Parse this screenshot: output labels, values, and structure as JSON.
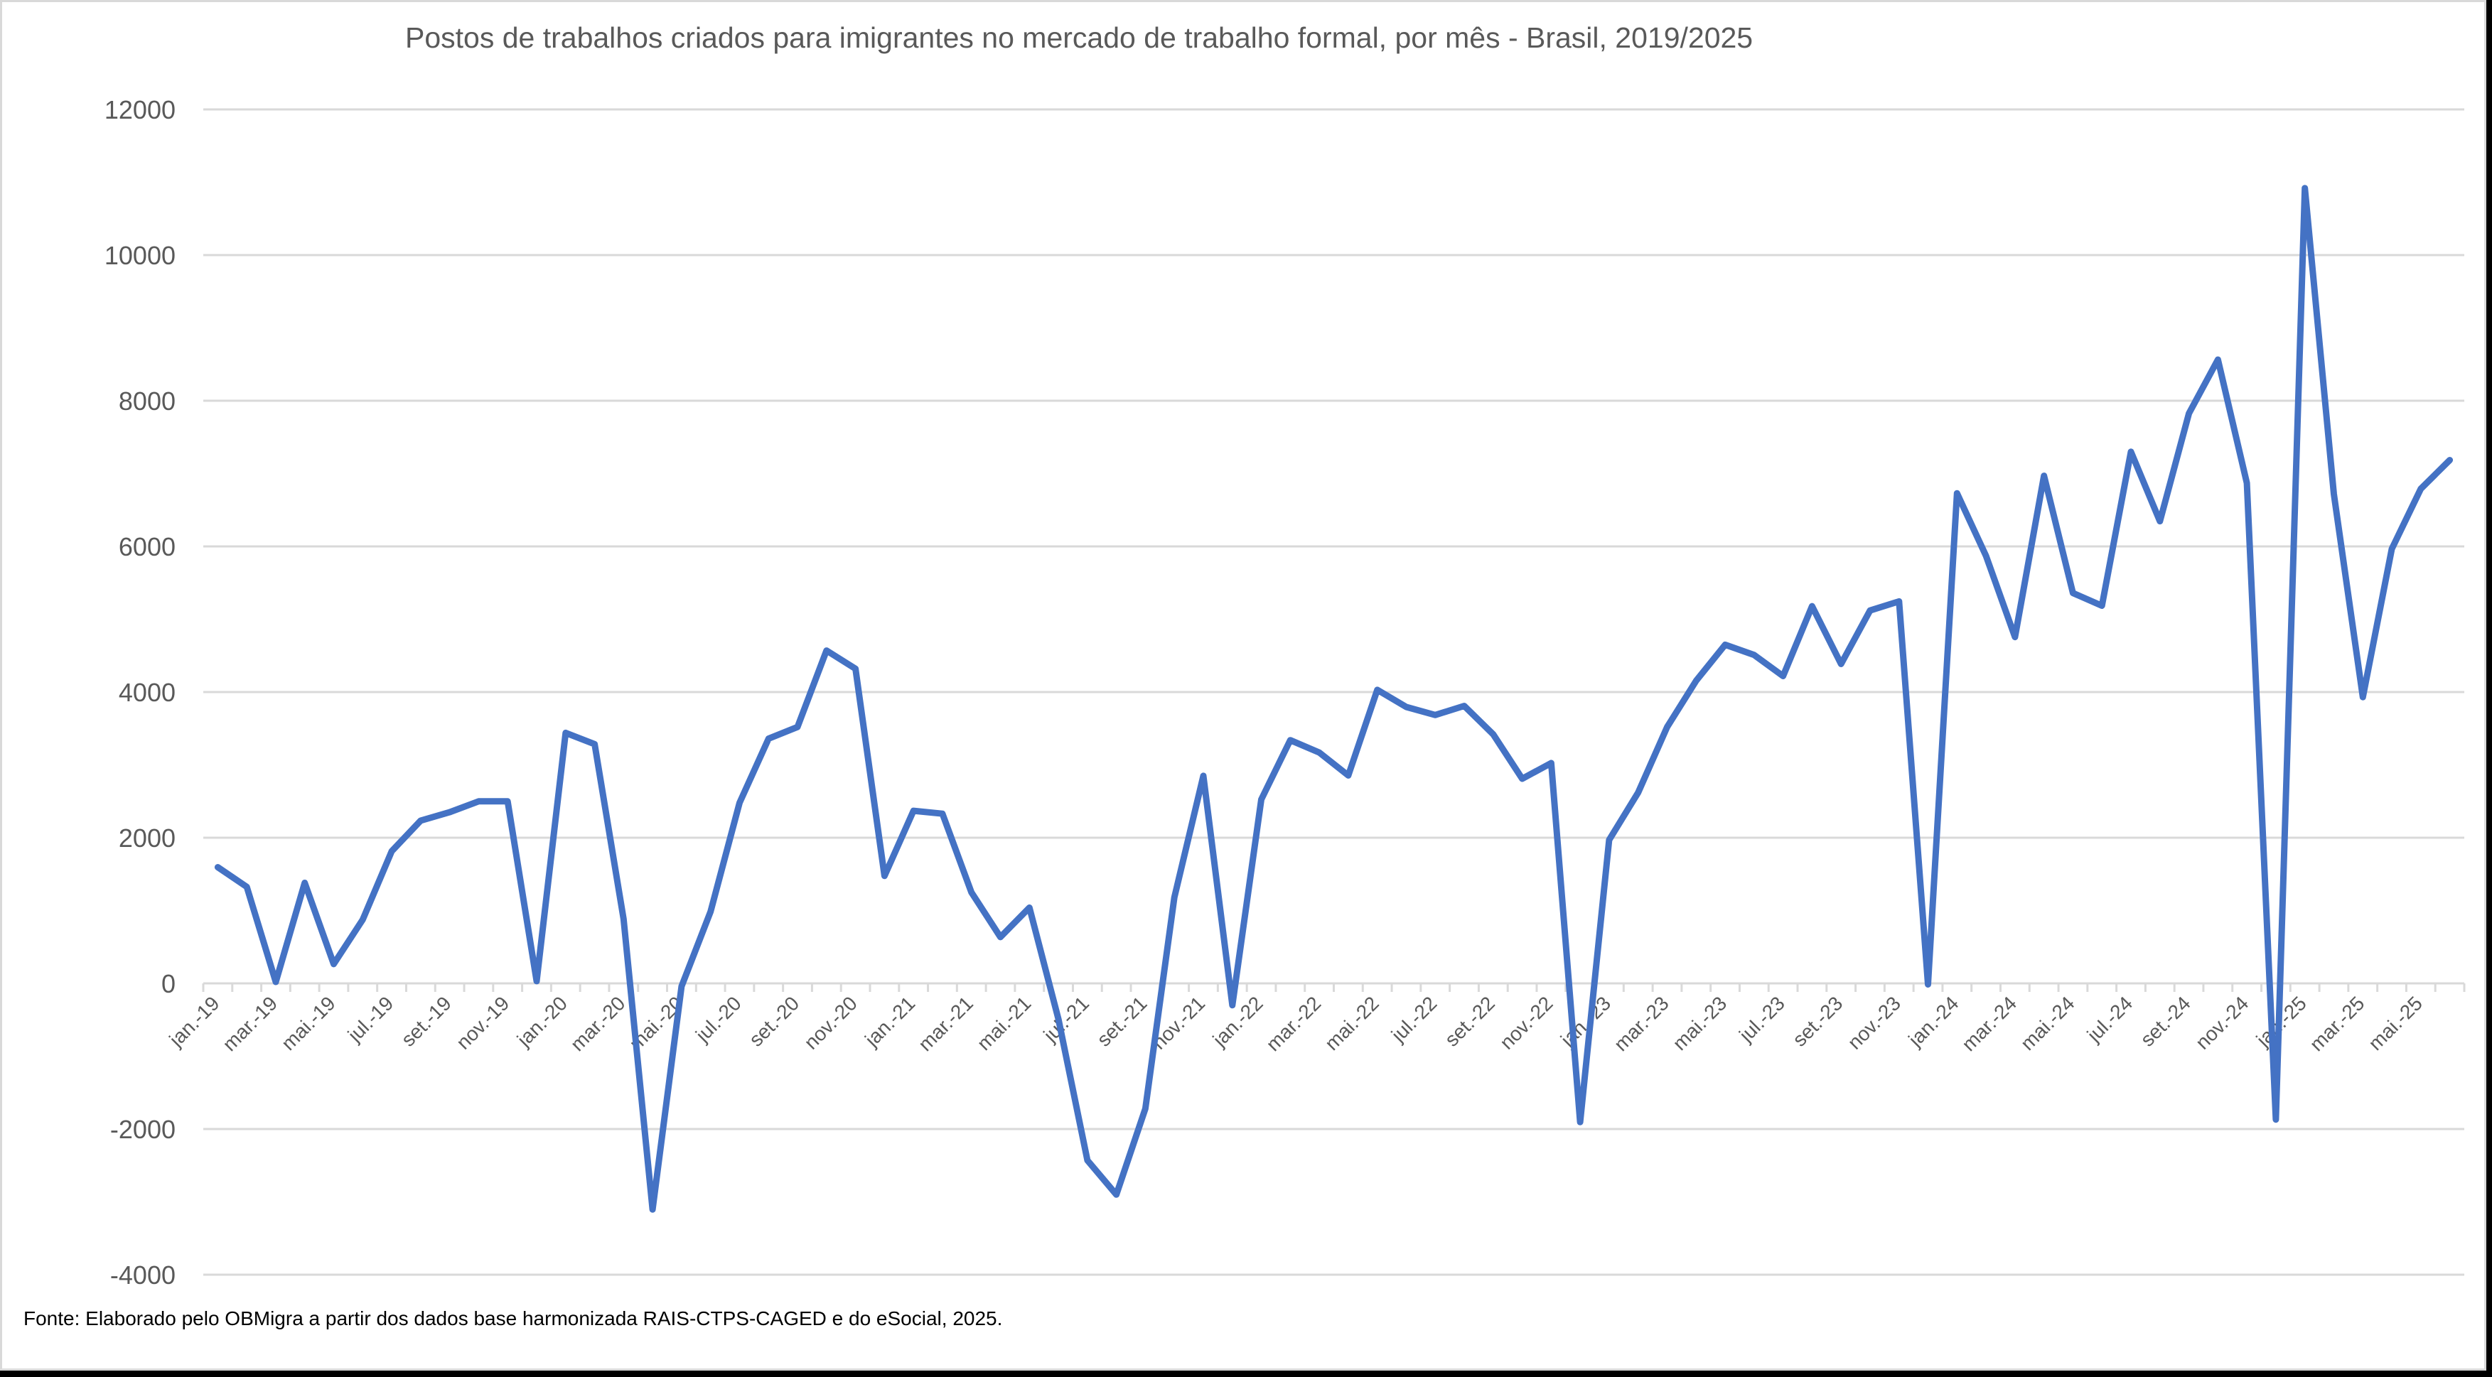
{
  "chart_data": {
    "type": "line",
    "title": "Postos de trabalhos criados para imigrantes no mercado de trabalho formal, por mês - Brasil, 2019/2025",
    "xlabel": "",
    "ylabel": "",
    "ylim": [
      -4000,
      12000
    ],
    "yticks": [
      -4000,
      -2000,
      0,
      2000,
      4000,
      6000,
      8000,
      10000,
      12000
    ],
    "grid": true,
    "legend": "none",
    "x": [
      "jan.-19",
      "fev.-19",
      "mar.-19",
      "abr.-19",
      "mai.-19",
      "jun.-19",
      "jul.-19",
      "ago.-19",
      "set.-19",
      "out.-19",
      "nov.-19",
      "dez.-19",
      "jan.-20",
      "fev.-20",
      "mar.-20",
      "abr.-20",
      "mai.-20",
      "jun.-20",
      "jul.-20",
      "ago.-20",
      "set.-20",
      "out.-20",
      "nov.-20",
      "dez.-20",
      "jan.-21",
      "fev.-21",
      "mar.-21",
      "abr.-21",
      "mai.-21",
      "jun.-21",
      "jul.-21",
      "ago.-21",
      "set.-21",
      "out.-21",
      "nov.-21",
      "dez.-21",
      "jan.-22",
      "fev.-22",
      "mar.-22",
      "abr.-22",
      "mai.-22",
      "jun.-22",
      "jul.-22",
      "ago.-22",
      "set.-22",
      "out.-22",
      "nov.-22",
      "dez.-22",
      "jan.-23",
      "fev.-23",
      "mar.-23",
      "abr.-23",
      "mai.-23",
      "jun.-23",
      "jul.-23",
      "ago.-23",
      "set.-23",
      "out.-23",
      "nov.-23",
      "dez.-23",
      "jan.-24",
      "fev.-24",
      "mar.-24",
      "abr.-24",
      "mai.-24",
      "jun.-24",
      "jul.-24",
      "ago.-24",
      "set.-24",
      "out.-24",
      "nov.-24",
      "dez.-24",
      "jan.-25",
      "fev.-25",
      "mar.-25",
      "abr.-25",
      "mai.-25",
      "jun.-25"
    ],
    "visible_tick_labels": [
      "jan.-19",
      "mar.-19",
      "mai.-19",
      "jul.-19",
      "set.-19",
      "nov.-19",
      "jan.-20",
      "mar.-20",
      "mai.-20",
      "jul.-20",
      "set.-20",
      "nov.-20",
      "jan.-21",
      "mar.-21",
      "mai.-21",
      "jul.-21",
      "set.-21",
      "nov.-21",
      "jan.-22",
      "mar.-22",
      "mai.-22",
      "jul.-22",
      "set.-22",
      "nov.-22",
      "jan.-23",
      "mar.-23",
      "mai.-23",
      "jul.-23",
      "set.-23",
      "nov.-23",
      "jan.-24",
      "mar.-24",
      "mai.-24",
      "jul.-24",
      "set.-24",
      "nov.-24",
      "jan.-25",
      "mar.-25",
      "mai.-25"
    ],
    "series": [
      {
        "name": "Postos de trabalho criados",
        "color": "#4472C4",
        "values": [
          1595,
          1325,
          20,
          1380,
          265,
          875,
          1815,
          2235,
          2350,
          2500,
          2500,
          30,
          3440,
          3285,
          885,
          -3105,
          -40,
          985,
          2480,
          3360,
          3520,
          4570,
          4320,
          1475,
          2370,
          2330,
          1250,
          635,
          1040,
          -490,
          -2430,
          -2900,
          -1720,
          1180,
          2850,
          -300,
          2525,
          3340,
          3170,
          2855,
          4030,
          3795,
          3685,
          3810,
          3420,
          2810,
          3025,
          -1905,
          1970,
          2620,
          3520,
          4155,
          4650,
          4510,
          4220,
          5180,
          4385,
          5120,
          5245,
          -15,
          6730,
          5870,
          4755,
          6970,
          5360,
          5185,
          7300,
          6345,
          7825,
          8565,
          6870,
          -1870,
          10920,
          6720,
          3930,
          5965,
          6790,
          7185
        ]
      }
    ],
    "source_note": "Fonte: Elaborado pelo OBMigra a partir dos dados base harmonizada RAIS-CTPS-CAGED e do eSocial, 2025."
  },
  "colors": {
    "line": "#4472C4",
    "grid": "#D9D9D9",
    "axis_text": "#595959"
  }
}
